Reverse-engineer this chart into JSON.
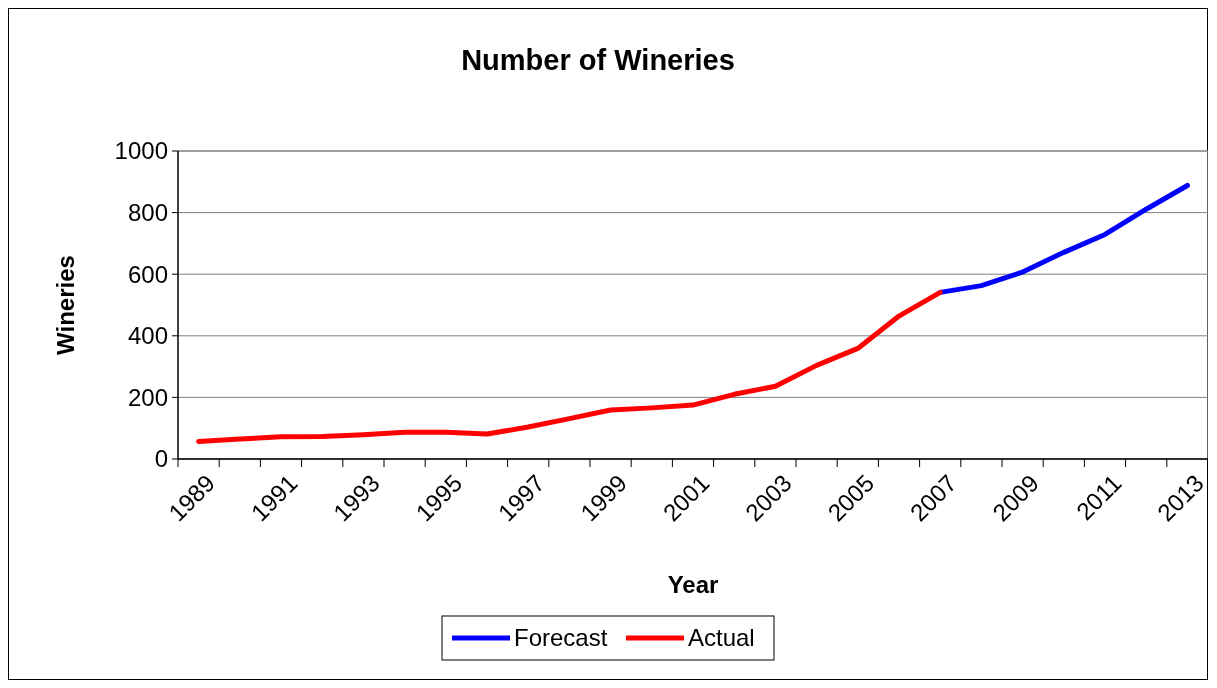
{
  "chart_data": {
    "type": "line",
    "title": "Number of Wineries",
    "xlabel": "Year",
    "ylabel": "Wineries",
    "categories": [
      "1989",
      null,
      "1991",
      null,
      "1993",
      null,
      "1995",
      null,
      "1997",
      null,
      "1999",
      null,
      "2001",
      null,
      "2003",
      null,
      "2005",
      null,
      "2007",
      null,
      "2009",
      null,
      "2011",
      null,
      "2013"
    ],
    "series": [
      {
        "name": "Forecast",
        "color": "#0000ff",
        "values": [
          null,
          null,
          null,
          null,
          null,
          null,
          null,
          null,
          null,
          null,
          null,
          null,
          null,
          null,
          null,
          null,
          null,
          null,
          541,
          563,
          607,
          671,
          729,
          811,
          888
        ]
      },
      {
        "name": "Actual",
        "color": "#ff0000",
        "values": [
          57,
          65,
          72,
          73,
          79,
          87,
          87,
          81,
          104,
          131,
          159,
          166,
          175,
          210,
          236,
          304,
          359,
          464,
          541,
          null,
          null,
          null,
          null,
          null,
          null
        ]
      }
    ],
    "ylim": [
      0,
      1000
    ],
    "yticks": [
      0,
      200,
      400,
      600,
      800,
      1000
    ],
    "grid": "y",
    "legend": "bottom"
  }
}
